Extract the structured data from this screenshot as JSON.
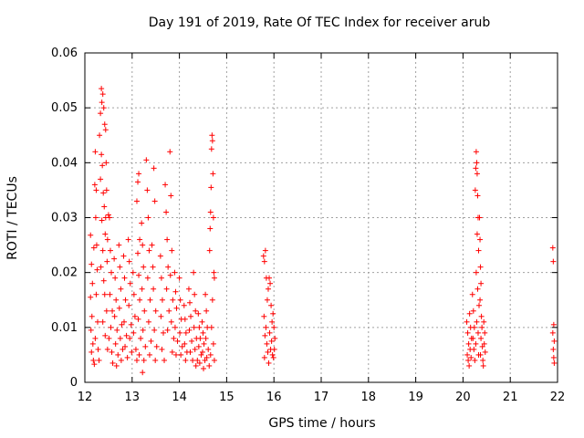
{
  "chart_data": {
    "type": "scatter",
    "title": "Day 191 of 2019, Rate Of TEC Index for receiver arub",
    "xlabel": "GPS time / hours",
    "ylabel": "ROTI / TECUs",
    "xlim": [
      12,
      22
    ],
    "ylim": [
      0,
      0.06
    ],
    "x_ticks": [
      "12",
      "13",
      "14",
      "15",
      "16",
      "17",
      "18",
      "19",
      "20",
      "21",
      "22"
    ],
    "y_ticks": [
      "0",
      "0.01",
      "0.02",
      "0.03",
      "0.04",
      "0.05",
      "0.06"
    ],
    "grid": true,
    "marker": "+",
    "color": "#ff0000",
    "series": [
      {
        "points": [
          [
            12.12,
            0.0268
          ],
          [
            12.14,
            0.0215
          ],
          [
            12.16,
            0.018
          ],
          [
            12.12,
            0.0155
          ],
          [
            12.15,
            0.012
          ],
          [
            12.13,
            0.0095
          ],
          [
            12.17,
            0.007
          ],
          [
            12.14,
            0.0055
          ],
          [
            12.18,
            0.004
          ],
          [
            12.2,
            0.0033
          ],
          [
            12.19,
            0.0245
          ],
          [
            12.21,
            0.036
          ],
          [
            12.22,
            0.042
          ],
          [
            12.24,
            0.035
          ],
          [
            12.23,
            0.03
          ],
          [
            12.25,
            0.025
          ],
          [
            12.26,
            0.0205
          ],
          [
            12.24,
            0.016
          ],
          [
            12.27,
            0.011
          ],
          [
            12.22,
            0.008
          ],
          [
            12.28,
            0.006
          ],
          [
            12.3,
            0.004
          ],
          [
            12.31,
            0.045
          ],
          [
            12.33,
            0.049
          ],
          [
            12.35,
            0.0535
          ],
          [
            12.36,
            0.051
          ],
          [
            12.38,
            0.0525
          ],
          [
            12.4,
            0.05
          ],
          [
            12.42,
            0.047
          ],
          [
            12.44,
            0.046
          ],
          [
            12.35,
            0.0415
          ],
          [
            12.37,
            0.0395
          ],
          [
            12.33,
            0.037
          ],
          [
            12.39,
            0.0345
          ],
          [
            12.41,
            0.032
          ],
          [
            12.36,
            0.0295
          ],
          [
            12.43,
            0.027
          ],
          [
            12.38,
            0.024
          ],
          [
            12.34,
            0.021
          ],
          [
            12.4,
            0.0185
          ],
          [
            12.45,
            0.04
          ],
          [
            12.46,
            0.035
          ],
          [
            12.44,
            0.03
          ],
          [
            12.48,
            0.026
          ],
          [
            12.47,
            0.022
          ],
          [
            12.42,
            0.016
          ],
          [
            12.46,
            0.013
          ],
          [
            12.38,
            0.011
          ],
          [
            12.43,
            0.0085
          ],
          [
            12.48,
            0.006
          ],
          [
            12.5,
            0.0305
          ],
          [
            12.52,
            0.03
          ],
          [
            12.54,
            0.024
          ],
          [
            12.56,
            0.02
          ],
          [
            12.53,
            0.016
          ],
          [
            12.58,
            0.013
          ],
          [
            12.55,
            0.01
          ],
          [
            12.51,
            0.008
          ],
          [
            12.57,
            0.0055
          ],
          [
            12.59,
            0.0035
          ],
          [
            12.62,
            0.0225
          ],
          [
            12.64,
            0.019
          ],
          [
            12.66,
            0.015
          ],
          [
            12.63,
            0.012
          ],
          [
            12.68,
            0.0095
          ],
          [
            12.65,
            0.007
          ],
          [
            12.7,
            0.005
          ],
          [
            12.67,
            0.003
          ],
          [
            12.72,
            0.025
          ],
          [
            12.74,
            0.021
          ],
          [
            12.76,
            0.017
          ],
          [
            12.73,
            0.0135
          ],
          [
            12.78,
            0.0105
          ],
          [
            12.75,
            0.008
          ],
          [
            12.8,
            0.006
          ],
          [
            12.77,
            0.004
          ],
          [
            12.82,
            0.023
          ],
          [
            12.84,
            0.019
          ],
          [
            12.86,
            0.015
          ],
          [
            12.83,
            0.011
          ],
          [
            12.88,
            0.0085
          ],
          [
            12.85,
            0.0065
          ],
          [
            12.9,
            0.0045
          ],
          [
            12.92,
            0.026
          ],
          [
            12.94,
            0.022
          ],
          [
            12.96,
            0.018
          ],
          [
            12.93,
            0.014
          ],
          [
            12.98,
            0.0105
          ],
          [
            12.95,
            0.008
          ],
          [
            12.99,
            0.0055
          ],
          [
            13.02,
            0.02
          ],
          [
            13.04,
            0.016
          ],
          [
            13.06,
            0.012
          ],
          [
            13.03,
            0.009
          ],
          [
            13.08,
            0.006
          ],
          [
            13.1,
            0.004
          ],
          [
            13.12,
            0.0235
          ],
          [
            13.14,
            0.0195
          ],
          [
            13.16,
            0.015
          ],
          [
            13.13,
            0.0115
          ],
          [
            13.18,
            0.008
          ],
          [
            13.15,
            0.005
          ],
          [
            13.1,
            0.033
          ],
          [
            13.12,
            0.0365
          ],
          [
            13.14,
            0.038
          ],
          [
            13.16,
            0.026
          ],
          [
            13.2,
            0.029
          ],
          [
            13.22,
            0.025
          ],
          [
            13.24,
            0.021
          ],
          [
            13.21,
            0.017
          ],
          [
            13.26,
            0.013
          ],
          [
            13.23,
            0.0095
          ],
          [
            13.28,
            0.0065
          ],
          [
            13.25,
            0.004
          ],
          [
            13.22,
            0.0018
          ],
          [
            13.3,
            0.0405
          ],
          [
            13.32,
            0.035
          ],
          [
            13.34,
            0.03
          ],
          [
            13.36,
            0.024
          ],
          [
            13.33,
            0.019
          ],
          [
            13.38,
            0.015
          ],
          [
            13.35,
            0.011
          ],
          [
            13.4,
            0.0075
          ],
          [
            13.37,
            0.005
          ],
          [
            13.42,
            0.025
          ],
          [
            13.44,
            0.021
          ],
          [
            13.46,
            0.039
          ],
          [
            13.48,
            0.033
          ],
          [
            13.45,
            0.017
          ],
          [
            13.5,
            0.013
          ],
          [
            13.47,
            0.0095
          ],
          [
            13.52,
            0.0065
          ],
          [
            13.49,
            0.004
          ],
          [
            13.6,
            0.023
          ],
          [
            13.62,
            0.019
          ],
          [
            13.64,
            0.015
          ],
          [
            13.61,
            0.012
          ],
          [
            13.66,
            0.009
          ],
          [
            13.63,
            0.006
          ],
          [
            13.68,
            0.004
          ],
          [
            13.7,
            0.036
          ],
          [
            13.72,
            0.031
          ],
          [
            13.74,
            0.026
          ],
          [
            13.76,
            0.021
          ],
          [
            13.73,
            0.017
          ],
          [
            13.78,
            0.013
          ],
          [
            13.75,
            0.0095
          ],
          [
            13.8,
            0.042
          ],
          [
            13.82,
            0.034
          ],
          [
            13.84,
            0.024
          ],
          [
            13.81,
            0.0195
          ],
          [
            13.86,
            0.015
          ],
          [
            13.83,
            0.011
          ],
          [
            13.88,
            0.008
          ],
          [
            13.85,
            0.0055
          ],
          [
            13.9,
            0.02
          ],
          [
            13.92,
            0.0165
          ],
          [
            13.94,
            0.0135
          ],
          [
            13.91,
            0.01
          ],
          [
            13.96,
            0.0075
          ],
          [
            13.93,
            0.005
          ],
          [
            14.0,
            0.019
          ],
          [
            14.02,
            0.015
          ],
          [
            14.04,
            0.0115
          ],
          [
            14.01,
            0.009
          ],
          [
            14.06,
            0.0065
          ],
          [
            14.03,
            0.005
          ],
          [
            14.1,
            0.014
          ],
          [
            14.12,
            0.0115
          ],
          [
            14.14,
            0.009
          ],
          [
            14.11,
            0.007
          ],
          [
            14.16,
            0.0055
          ],
          [
            14.13,
            0.004
          ],
          [
            14.2,
            0.017
          ],
          [
            14.22,
            0.0145
          ],
          [
            14.24,
            0.012
          ],
          [
            14.21,
            0.0095
          ],
          [
            14.26,
            0.0075
          ],
          [
            14.23,
            0.0055
          ],
          [
            14.28,
            0.004
          ],
          [
            14.3,
            0.02
          ],
          [
            14.32,
            0.016
          ],
          [
            14.34,
            0.013
          ],
          [
            14.31,
            0.01
          ],
          [
            14.36,
            0.008
          ],
          [
            14.33,
            0.006
          ],
          [
            14.38,
            0.004
          ],
          [
            14.35,
            0.003
          ],
          [
            14.4,
            0.0125
          ],
          [
            14.42,
            0.01
          ],
          [
            14.44,
            0.008
          ],
          [
            14.41,
            0.0065
          ],
          [
            14.46,
            0.005
          ],
          [
            14.43,
            0.0035
          ],
          [
            14.48,
            0.011
          ],
          [
            14.5,
            0.009
          ],
          [
            14.52,
            0.007
          ],
          [
            14.49,
            0.0055
          ],
          [
            14.54,
            0.004
          ],
          [
            14.51,
            0.0025
          ],
          [
            14.55,
            0.016
          ],
          [
            14.57,
            0.013
          ],
          [
            14.59,
            0.01
          ],
          [
            14.56,
            0.008
          ],
          [
            14.61,
            0.006
          ],
          [
            14.58,
            0.0045
          ],
          [
            14.63,
            0.003
          ],
          [
            14.65,
            0.028
          ],
          [
            14.66,
            0.031
          ],
          [
            14.64,
            0.024
          ],
          [
            14.67,
            0.0355
          ],
          [
            14.68,
            0.0425
          ],
          [
            14.69,
            0.045
          ],
          [
            14.7,
            0.044
          ],
          [
            14.71,
            0.038
          ],
          [
            14.72,
            0.03
          ],
          [
            14.73,
            0.02
          ],
          [
            14.7,
            0.015
          ],
          [
            14.74,
            0.019
          ],
          [
            14.68,
            0.01
          ],
          [
            14.72,
            0.007
          ],
          [
            14.66,
            0.005
          ],
          [
            14.74,
            0.004
          ],
          [
            15.78,
            0.023
          ],
          [
            15.8,
            0.022
          ],
          [
            15.82,
            0.024
          ],
          [
            15.84,
            0.019
          ],
          [
            15.86,
            0.015
          ],
          [
            15.79,
            0.012
          ],
          [
            15.83,
            0.01
          ],
          [
            15.81,
            0.0085
          ],
          [
            15.85,
            0.007
          ],
          [
            15.87,
            0.0055
          ],
          [
            15.8,
            0.0045
          ],
          [
            15.88,
            0.017
          ],
          [
            15.9,
            0.019
          ],
          [
            15.92,
            0.018
          ],
          [
            15.94,
            0.014
          ],
          [
            15.96,
            0.011
          ],
          [
            15.91,
            0.009
          ],
          [
            15.95,
            0.0075
          ],
          [
            15.93,
            0.006
          ],
          [
            15.97,
            0.005
          ],
          [
            15.89,
            0.0035
          ],
          [
            15.98,
            0.0125
          ],
          [
            16.0,
            0.01
          ],
          [
            16.02,
            0.008
          ],
          [
            16.01,
            0.006
          ],
          [
            15.99,
            0.0045
          ],
          [
            20.08,
            0.011
          ],
          [
            20.1,
            0.009
          ],
          [
            20.12,
            0.007
          ],
          [
            20.09,
            0.005
          ],
          [
            20.11,
            0.004
          ],
          [
            20.13,
            0.003
          ],
          [
            20.14,
            0.0125
          ],
          [
            20.16,
            0.01
          ],
          [
            20.18,
            0.008
          ],
          [
            20.15,
            0.006
          ],
          [
            20.17,
            0.0045
          ],
          [
            20.2,
            0.016
          ],
          [
            20.22,
            0.013
          ],
          [
            20.24,
            0.01
          ],
          [
            20.21,
            0.008
          ],
          [
            20.23,
            0.006
          ],
          [
            20.25,
            0.004
          ],
          [
            20.26,
            0.035
          ],
          [
            20.27,
            0.039
          ],
          [
            20.28,
            0.042
          ],
          [
            20.29,
            0.04
          ],
          [
            20.3,
            0.038
          ],
          [
            20.31,
            0.034
          ],
          [
            20.32,
            0.03
          ],
          [
            20.3,
            0.027
          ],
          [
            20.33,
            0.024
          ],
          [
            20.28,
            0.02
          ],
          [
            20.31,
            0.017
          ],
          [
            20.34,
            0.014
          ],
          [
            20.29,
            0.011
          ],
          [
            20.32,
            0.009
          ],
          [
            20.27,
            0.007
          ],
          [
            20.33,
            0.005
          ],
          [
            20.35,
            0.03
          ],
          [
            20.36,
            0.026
          ],
          [
            20.37,
            0.021
          ],
          [
            20.38,
            0.018
          ],
          [
            20.36,
            0.015
          ],
          [
            20.39,
            0.012
          ],
          [
            20.4,
            0.01
          ],
          [
            20.38,
            0.008
          ],
          [
            20.41,
            0.0065
          ],
          [
            20.37,
            0.005
          ],
          [
            20.42,
            0.004
          ],
          [
            20.44,
            0.011
          ],
          [
            20.46,
            0.009
          ],
          [
            20.45,
            0.007
          ],
          [
            20.47,
            0.0055
          ],
          [
            20.43,
            0.003
          ],
          [
            21.9,
            0.0245
          ],
          [
            21.91,
            0.022
          ],
          [
            21.92,
            0.0105
          ],
          [
            21.9,
            0.009
          ],
          [
            21.93,
            0.0075
          ],
          [
            21.91,
            0.006
          ],
          [
            21.92,
            0.0045
          ],
          [
            21.93,
            0.0035
          ]
        ]
      }
    ]
  }
}
